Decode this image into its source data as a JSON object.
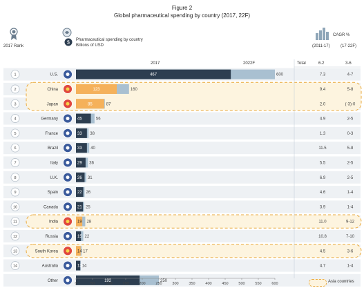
{
  "header": {
    "figure_label": "Figure 2",
    "title": "Global pharmaceutical spending by country (2017, 22F)",
    "rank_label": "2017 Rank",
    "spend_label_1": "Pharmaceutical spending by country",
    "spend_label_2": "Billions of USD",
    "cagr_label": "CAGR %",
    "cagr_period_1": "(2011-17)",
    "cagr_period_2": "(17-22F)",
    "col_2017": "2017",
    "col_2022": "2022F",
    "total_label": "Total",
    "total_cagr_1": "6.2",
    "total_cagr_2": "3-6"
  },
  "legend": {
    "asia_label": "Asia countries"
  },
  "colors": {
    "dark_bar": "#2d3e50",
    "asia_bar": "#f5b15a",
    "light_bar": "#a9c0d1",
    "row_bg": "#eef1f4",
    "highlight": "#e9a93c",
    "highlight_fill": "#fdf4df"
  },
  "icons": [
    "medal-icon",
    "pill-bottle-icon",
    "dollar-coin-icon",
    "bar-chart-icon"
  ],
  "chart_data": {
    "type": "bar",
    "orientation": "horizontal",
    "xlim": [
      0,
      600
    ],
    "xticks": [
      0,
      50,
      100,
      150,
      200,
      250,
      300,
      350,
      400,
      450,
      500,
      550,
      600
    ],
    "series": [
      {
        "name": "2017",
        "values": [
          467,
          123,
          85,
          45,
          33,
          33,
          29,
          26,
          22,
          21,
          19,
          15,
          14,
          13,
          192
        ]
      },
      {
        "name": "2022F",
        "values": [
          600,
          160,
          87,
          56,
          38,
          40,
          36,
          31,
          26,
          25,
          28,
          22,
          17,
          14,
          250
        ]
      }
    ],
    "rows": [
      {
        "rank": "1",
        "country": "U.S.",
        "v2017": 467,
        "v2022": 600,
        "cagr1": "7.3",
        "cagr2": "4-7",
        "asia": false,
        "flag": "us-flag-icon"
      },
      {
        "rank": "2",
        "country": "China",
        "v2017": 123,
        "v2022": 160,
        "cagr1": "9.4",
        "cagr2": "5-8",
        "asia": true,
        "flag": "china-flag-icon"
      },
      {
        "rank": "3",
        "country": "Japan",
        "v2017": 85,
        "v2022": 87,
        "cagr1": "2.0",
        "cagr2": "(-3)-0",
        "asia": true,
        "flag": "japan-flag-icon"
      },
      {
        "rank": "4",
        "country": "Germany",
        "v2017": 45,
        "v2022": 56,
        "cagr1": "4.9",
        "cagr2": "2-5",
        "asia": false,
        "flag": "germany-flag-icon"
      },
      {
        "rank": "5",
        "country": "France",
        "v2017": 33,
        "v2022": 38,
        "cagr1": "1.3",
        "cagr2": "0-3",
        "asia": false,
        "flag": "france-flag-icon"
      },
      {
        "rank": "6",
        "country": "Brazil",
        "v2017": 33,
        "v2022": 40,
        "cagr1": "11.5",
        "cagr2": "5-8",
        "asia": false,
        "flag": "brazil-flag-icon"
      },
      {
        "rank": "7",
        "country": "Italy",
        "v2017": 29,
        "v2022": 36,
        "cagr1": "5.5",
        "cagr2": "2-5",
        "asia": false,
        "flag": "italy-flag-icon"
      },
      {
        "rank": "8",
        "country": "U.K.",
        "v2017": 26,
        "v2022": 31,
        "cagr1": "6.9",
        "cagr2": "2-5",
        "asia": false,
        "flag": "uk-flag-icon"
      },
      {
        "rank": "9",
        "country": "Spain",
        "v2017": 22,
        "v2022": 26,
        "cagr1": "4.6",
        "cagr2": "1-4",
        "asia": false,
        "flag": "spain-flag-icon"
      },
      {
        "rank": "10",
        "country": "Canada",
        "v2017": 21,
        "v2022": 25,
        "cagr1": "3.9",
        "cagr2": "1-4",
        "asia": false,
        "flag": "canada-flag-icon"
      },
      {
        "rank": "11",
        "country": "India",
        "v2017": 19,
        "v2022": 28,
        "cagr1": "11.0",
        "cagr2": "9-12",
        "asia": true,
        "flag": "india-flag-icon"
      },
      {
        "rank": "12",
        "country": "Russia",
        "v2017": 15,
        "v2022": 22,
        "cagr1": "10.8",
        "cagr2": "7-10",
        "asia": false,
        "flag": "russia-flag-icon"
      },
      {
        "rank": "13",
        "country": "South Korea",
        "v2017": 14,
        "v2022": 17,
        "cagr1": "4.5",
        "cagr2": "3-6",
        "asia": true,
        "flag": "south-korea-flag-icon"
      },
      {
        "rank": "14",
        "country": "Australia",
        "v2017": 13,
        "v2022": 14,
        "cagr1": "4.7",
        "cagr2": "1-4",
        "asia": false,
        "flag": "australia-flag-icon"
      },
      {
        "rank": "",
        "country": "Other",
        "v2017": 192,
        "v2022": 250,
        "cagr1": "",
        "cagr2": "",
        "asia": false,
        "flag": "globe-icon"
      }
    ]
  }
}
